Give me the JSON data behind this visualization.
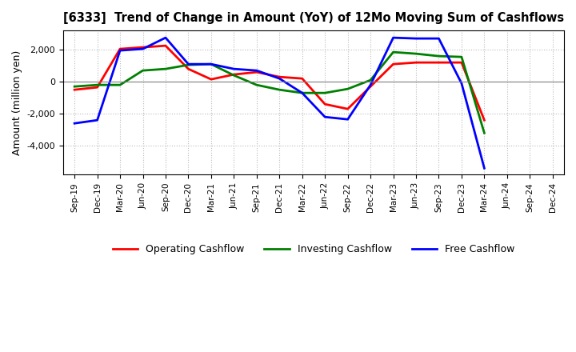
{
  "title": "[6333]  Trend of Change in Amount (YoY) of 12Mo Moving Sum of Cashflows",
  "ylabel": "Amount (million yen)",
  "x_labels": [
    "Sep-19",
    "Dec-19",
    "Mar-20",
    "Jun-20",
    "Sep-20",
    "Dec-20",
    "Mar-21",
    "Jun-21",
    "Sep-21",
    "Dec-21",
    "Mar-22",
    "Jun-22",
    "Sep-22",
    "Dec-22",
    "Mar-23",
    "Jun-23",
    "Sep-23",
    "Dec-23",
    "Mar-24",
    "Jun-24",
    "Sep-24",
    "Dec-24"
  ],
  "operating_cashflow": [
    -500,
    -350,
    2050,
    2150,
    2250,
    800,
    150,
    450,
    600,
    300,
    200,
    -1400,
    -1700,
    -300,
    1100,
    1200,
    1200,
    1200,
    -2400,
    null,
    null,
    null
  ],
  "investing_cashflow": [
    -300,
    -200,
    -200,
    700,
    800,
    1050,
    1100,
    400,
    -200,
    -500,
    -700,
    -700,
    -450,
    100,
    1850,
    1750,
    1600,
    1550,
    -3200,
    null,
    null,
    null
  ],
  "free_cashflow": [
    -2600,
    -2400,
    1950,
    2050,
    2750,
    1100,
    1100,
    800,
    700,
    200,
    -700,
    -2200,
    -2350,
    -200,
    2750,
    2700,
    2700,
    -100,
    -5400,
    null,
    null,
    null
  ],
  "operating_color": "#FF0000",
  "investing_color": "#008000",
  "free_color": "#0000FF",
  "ylim": [
    -5800,
    3200
  ],
  "yticks": [
    -4000,
    -2000,
    0,
    2000
  ],
  "grid_color": "#aaaaaa",
  "background_color": "#ffffff",
  "line_width": 2.0,
  "legend_items": [
    "Operating Cashflow",
    "Investing Cashflow",
    "Free Cashflow"
  ]
}
